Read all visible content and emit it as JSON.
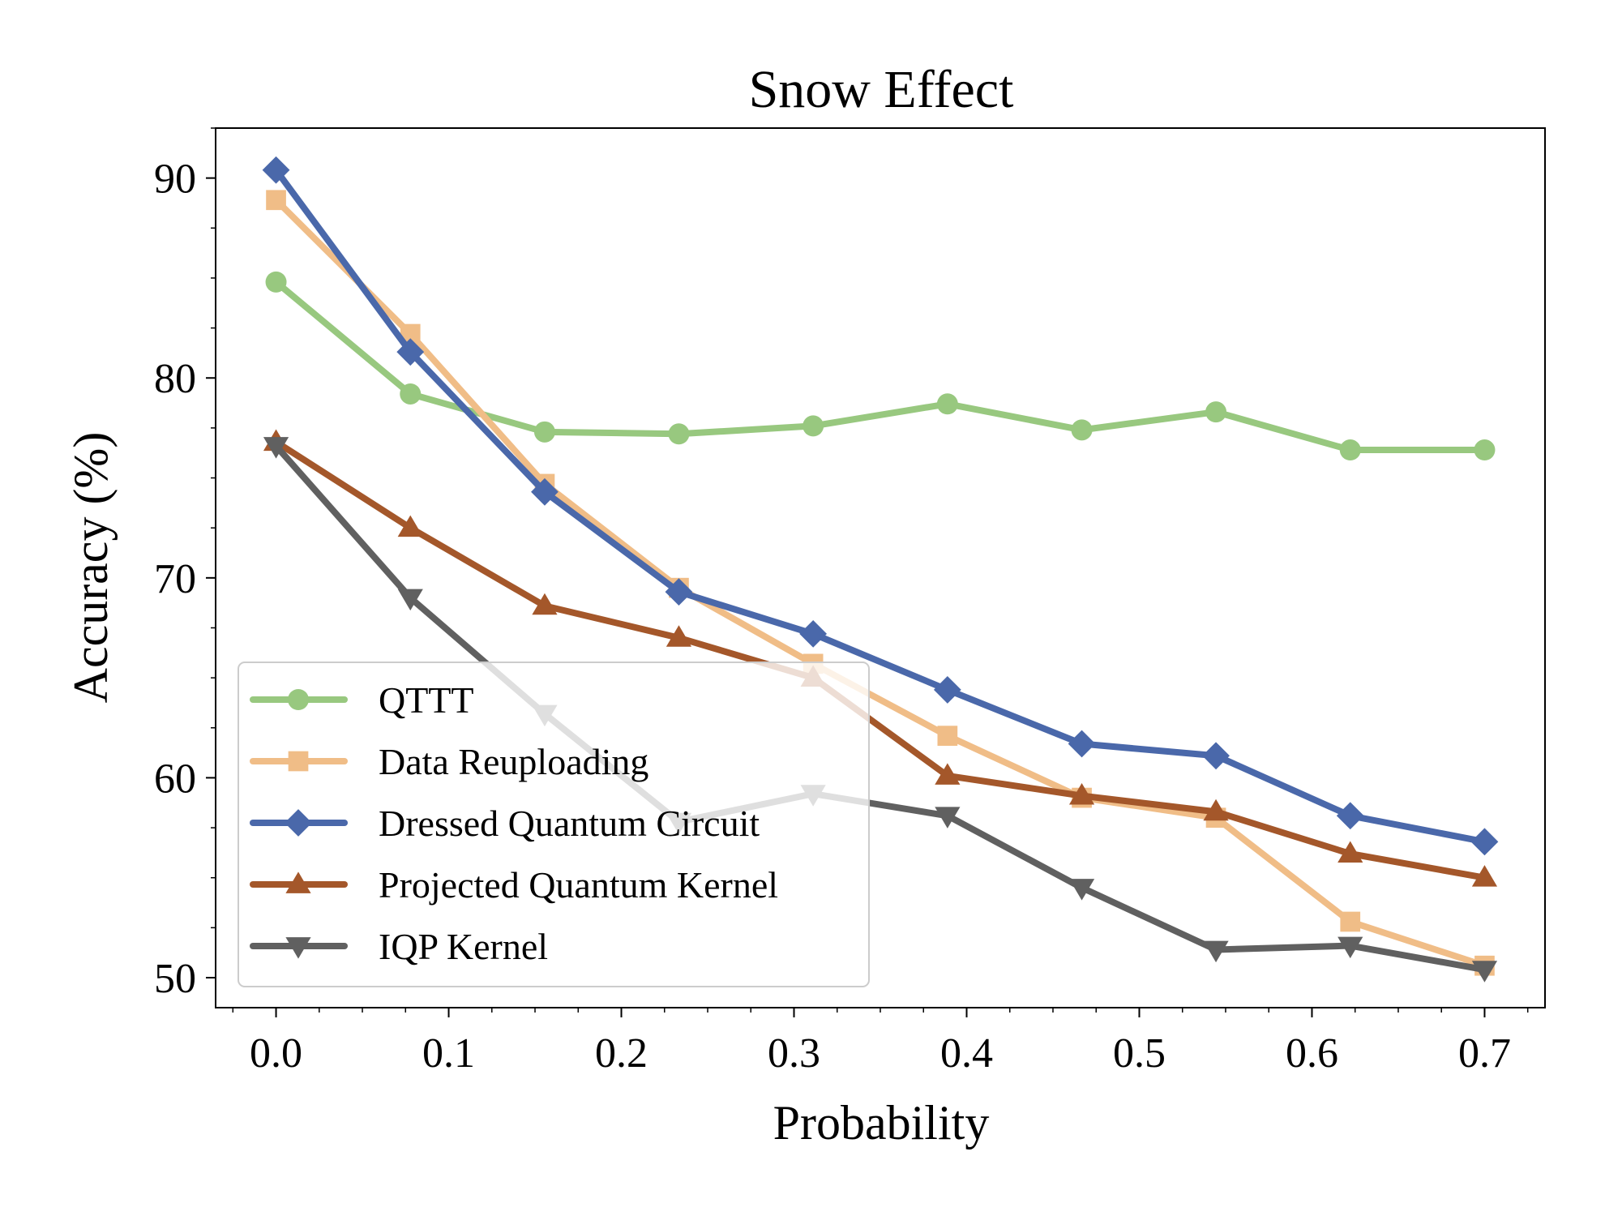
{
  "chart_data": {
    "type": "line",
    "title": "Snow Effect",
    "xlabel": "Probability",
    "ylabel": "Accuracy (%)",
    "xlim": [
      -0.035,
      0.735
    ],
    "ylim": [
      48.5,
      92.5
    ],
    "xticks": [
      0.0,
      0.1,
      0.2,
      0.3,
      0.4,
      0.5,
      0.6,
      0.7
    ],
    "xtick_labels": [
      "0.0",
      "0.1",
      "0.2",
      "0.3",
      "0.4",
      "0.5",
      "0.6",
      "0.7"
    ],
    "yticks": [
      50,
      60,
      70,
      80,
      90
    ],
    "ytick_labels": [
      "50",
      "60",
      "70",
      "80",
      "90"
    ],
    "grid": false,
    "legend_position": "lower-left",
    "x": [
      0.0,
      0.0778,
      0.1556,
      0.2333,
      0.3111,
      0.3889,
      0.4667,
      0.5444,
      0.6222,
      0.7
    ],
    "series": [
      {
        "name": "QTTT",
        "color": "#98c87f",
        "marker": "circle",
        "values": [
          84.8,
          79.2,
          77.3,
          77.2,
          77.6,
          78.7,
          77.4,
          78.3,
          76.4,
          76.4
        ]
      },
      {
        "name": "Data Reuploading",
        "color": "#f0bd87",
        "marker": "square",
        "values": [
          88.9,
          82.2,
          74.7,
          69.5,
          65.7,
          62.1,
          59.0,
          58.0,
          52.8,
          50.6
        ]
      },
      {
        "name": "Dressed Quantum Circuit",
        "color": "#4a68aa",
        "marker": "diamond",
        "values": [
          90.4,
          81.3,
          74.3,
          69.3,
          67.2,
          64.4,
          61.7,
          61.1,
          58.1,
          56.8
        ]
      },
      {
        "name": "Projected Quantum Kernel",
        "color": "#a4572a",
        "marker": "triangle-up",
        "values": [
          76.8,
          72.5,
          68.6,
          67.0,
          65.0,
          60.1,
          59.1,
          58.3,
          56.2,
          55.0
        ]
      },
      {
        "name": "IQP Kernel",
        "color": "#606060",
        "marker": "triangle-down",
        "values": [
          76.6,
          69.0,
          63.2,
          57.8,
          59.2,
          58.1,
          54.5,
          51.4,
          51.6,
          50.4
        ]
      }
    ]
  }
}
